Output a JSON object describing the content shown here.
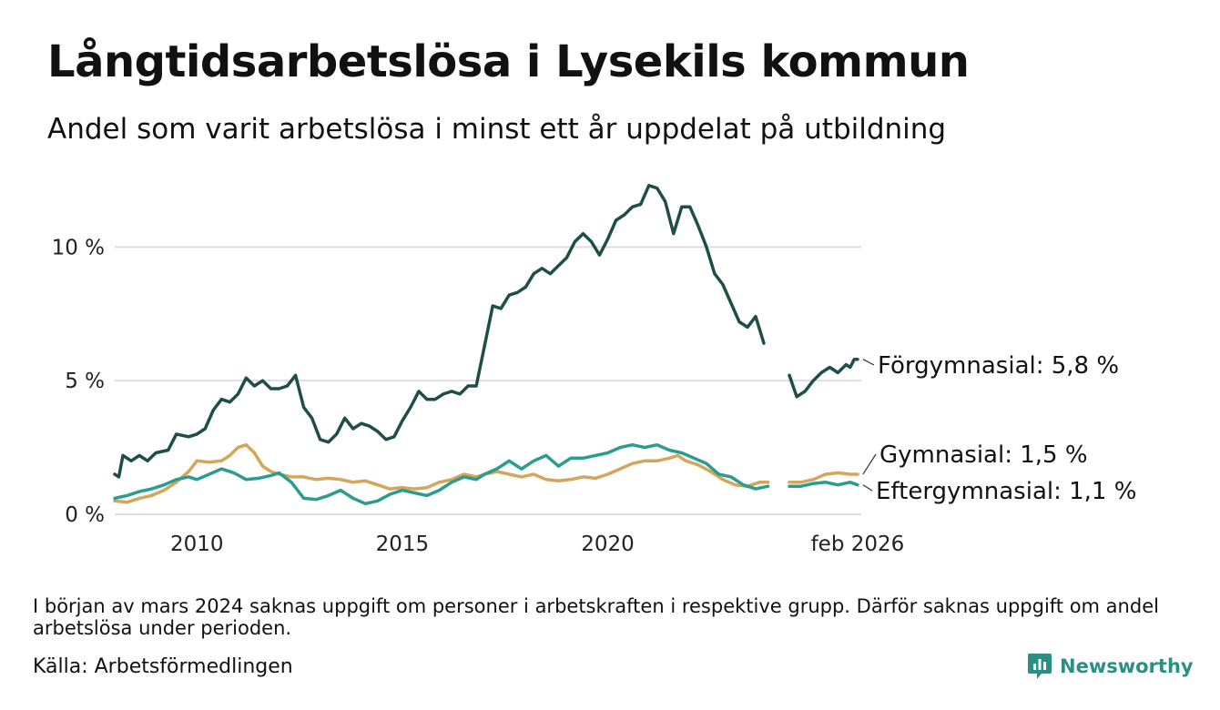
{
  "title": "Långtidsarbetslösa i Lysekils kommun",
  "subtitle": "Andel som varit arbetslösa i minst ett år uppdelat på utbildning",
  "note": "I början av mars 2024 saknas uppgift om personer i arbetskraften i respektive grupp. Därför saknas uppgift om andel arbetslösa under perioden.",
  "source": "Källa: Arbetsförmedlingen",
  "brand": {
    "name": "Newsworthy",
    "icon": "newsworthy-logo-icon",
    "color": "#2a8f85"
  },
  "chart_data": {
    "type": "line",
    "title": "Långtidsarbetslösa i Lysekils kommun",
    "xlabel": "",
    "ylabel": "",
    "xlim": [
      2008.0,
      2026.17
    ],
    "ylim": [
      0,
      12.6
    ],
    "yticks": [
      0,
      5,
      10
    ],
    "ytick_labels": [
      "0 %",
      "5 %",
      "10 %"
    ],
    "xticks": [
      2010,
      2015,
      2020,
      2026.08
    ],
    "xtick_labels": [
      "2010",
      "2015",
      "2020",
      "feb 2026"
    ],
    "grid": "horizontal",
    "gap": [
      2024.08,
      2024.42
    ],
    "series": [
      {
        "name": "Förgymnasial",
        "label": "Förgymnasial: 5,8 %",
        "color": "#1f4e48",
        "points": [
          [
            2008.0,
            1.5
          ],
          [
            2008.1,
            1.4
          ],
          [
            2008.2,
            2.2
          ],
          [
            2008.4,
            2.0
          ],
          [
            2008.6,
            2.2
          ],
          [
            2008.8,
            2.0
          ],
          [
            2009.0,
            2.3
          ],
          [
            2009.3,
            2.4
          ],
          [
            2009.5,
            3.0
          ],
          [
            2009.8,
            2.9
          ],
          [
            2010.0,
            3.0
          ],
          [
            2010.2,
            3.2
          ],
          [
            2010.4,
            3.9
          ],
          [
            2010.6,
            4.3
          ],
          [
            2010.8,
            4.2
          ],
          [
            2011.0,
            4.5
          ],
          [
            2011.2,
            5.1
          ],
          [
            2011.4,
            4.8
          ],
          [
            2011.6,
            5.0
          ],
          [
            2011.8,
            4.7
          ],
          [
            2012.0,
            4.7
          ],
          [
            2012.2,
            4.8
          ],
          [
            2012.4,
            5.2
          ],
          [
            2012.6,
            4.0
          ],
          [
            2012.8,
            3.6
          ],
          [
            2013.0,
            2.8
          ],
          [
            2013.2,
            2.7
          ],
          [
            2013.4,
            3.0
          ],
          [
            2013.6,
            3.6
          ],
          [
            2013.8,
            3.2
          ],
          [
            2014.0,
            3.4
          ],
          [
            2014.2,
            3.3
          ],
          [
            2014.4,
            3.1
          ],
          [
            2014.6,
            2.8
          ],
          [
            2014.8,
            2.9
          ],
          [
            2015.0,
            3.5
          ],
          [
            2015.2,
            4.0
          ],
          [
            2015.4,
            4.6
          ],
          [
            2015.6,
            4.3
          ],
          [
            2015.8,
            4.3
          ],
          [
            2016.0,
            4.5
          ],
          [
            2016.2,
            4.6
          ],
          [
            2016.4,
            4.5
          ],
          [
            2016.6,
            4.8
          ],
          [
            2016.8,
            4.8
          ],
          [
            2017.0,
            6.3
          ],
          [
            2017.2,
            7.8
          ],
          [
            2017.4,
            7.7
          ],
          [
            2017.6,
            8.2
          ],
          [
            2017.8,
            8.3
          ],
          [
            2018.0,
            8.5
          ],
          [
            2018.2,
            9.0
          ],
          [
            2018.4,
            9.2
          ],
          [
            2018.6,
            9.0
          ],
          [
            2018.8,
            9.3
          ],
          [
            2019.0,
            9.6
          ],
          [
            2019.2,
            10.2
          ],
          [
            2019.4,
            10.5
          ],
          [
            2019.6,
            10.2
          ],
          [
            2019.8,
            9.7
          ],
          [
            2020.0,
            10.3
          ],
          [
            2020.2,
            11.0
          ],
          [
            2020.4,
            11.2
          ],
          [
            2020.6,
            11.5
          ],
          [
            2020.8,
            11.6
          ],
          [
            2021.0,
            12.3
          ],
          [
            2021.2,
            12.2
          ],
          [
            2021.4,
            11.7
          ],
          [
            2021.6,
            10.5
          ],
          [
            2021.8,
            11.5
          ],
          [
            2022.0,
            11.5
          ],
          [
            2022.2,
            10.8
          ],
          [
            2022.4,
            10.0
          ],
          [
            2022.6,
            9.0
          ],
          [
            2022.8,
            8.6
          ],
          [
            2023.0,
            7.9
          ],
          [
            2023.2,
            7.2
          ],
          [
            2023.4,
            7.0
          ],
          [
            2023.6,
            7.4
          ],
          [
            2023.8,
            6.4
          ],
          [
            2024.42,
            5.2
          ],
          [
            2024.6,
            4.4
          ],
          [
            2024.8,
            4.6
          ],
          [
            2025.0,
            5.0
          ],
          [
            2025.2,
            5.3
          ],
          [
            2025.4,
            5.5
          ],
          [
            2025.6,
            5.3
          ],
          [
            2025.8,
            5.6
          ],
          [
            2025.9,
            5.5
          ],
          [
            2026.0,
            5.8
          ],
          [
            2026.08,
            5.8
          ]
        ]
      },
      {
        "name": "Gymnasial",
        "label": "Gymnasial: 1,5 %",
        "color": "#d4a55a",
        "points": [
          [
            2008.0,
            0.5
          ],
          [
            2008.3,
            0.45
          ],
          [
            2008.6,
            0.6
          ],
          [
            2008.9,
            0.7
          ],
          [
            2009.2,
            0.9
          ],
          [
            2009.5,
            1.2
          ],
          [
            2009.8,
            1.6
          ],
          [
            2010.0,
            2.0
          ],
          [
            2010.3,
            1.95
          ],
          [
            2010.6,
            2.0
          ],
          [
            2010.8,
            2.2
          ],
          [
            2011.0,
            2.5
          ],
          [
            2011.2,
            2.6
          ],
          [
            2011.4,
            2.3
          ],
          [
            2011.6,
            1.8
          ],
          [
            2011.8,
            1.6
          ],
          [
            2012.0,
            1.5
          ],
          [
            2012.3,
            1.4
          ],
          [
            2012.6,
            1.4
          ],
          [
            2012.9,
            1.3
          ],
          [
            2013.2,
            1.35
          ],
          [
            2013.5,
            1.3
          ],
          [
            2013.8,
            1.2
          ],
          [
            2014.1,
            1.25
          ],
          [
            2014.4,
            1.1
          ],
          [
            2014.7,
            0.95
          ],
          [
            2015.0,
            1.0
          ],
          [
            2015.3,
            0.95
          ],
          [
            2015.6,
            1.0
          ],
          [
            2015.9,
            1.2
          ],
          [
            2016.2,
            1.3
          ],
          [
            2016.5,
            1.5
          ],
          [
            2016.8,
            1.4
          ],
          [
            2017.0,
            1.5
          ],
          [
            2017.3,
            1.6
          ],
          [
            2017.6,
            1.5
          ],
          [
            2017.9,
            1.4
          ],
          [
            2018.2,
            1.5
          ],
          [
            2018.5,
            1.3
          ],
          [
            2018.8,
            1.25
          ],
          [
            2019.1,
            1.3
          ],
          [
            2019.4,
            1.4
          ],
          [
            2019.7,
            1.35
          ],
          [
            2020.0,
            1.5
          ],
          [
            2020.3,
            1.7
          ],
          [
            2020.6,
            1.9
          ],
          [
            2020.9,
            2.0
          ],
          [
            2021.2,
            2.0
          ],
          [
            2021.5,
            2.1
          ],
          [
            2021.7,
            2.2
          ],
          [
            2021.9,
            2.0
          ],
          [
            2022.2,
            1.85
          ],
          [
            2022.5,
            1.6
          ],
          [
            2022.8,
            1.3
          ],
          [
            2023.1,
            1.1
          ],
          [
            2023.4,
            1.05
          ],
          [
            2023.7,
            1.2
          ],
          [
            2023.9,
            1.2
          ],
          [
            2024.42,
            1.2
          ],
          [
            2024.7,
            1.2
          ],
          [
            2025.0,
            1.3
          ],
          [
            2025.3,
            1.5
          ],
          [
            2025.6,
            1.55
          ],
          [
            2025.9,
            1.5
          ],
          [
            2026.08,
            1.5
          ]
        ]
      },
      {
        "name": "Eftergymnasial",
        "label": "Eftergymnasial: 1,1 %",
        "color": "#2a9d8f",
        "points": [
          [
            2008.0,
            0.6
          ],
          [
            2008.3,
            0.7
          ],
          [
            2008.6,
            0.85
          ],
          [
            2008.9,
            0.95
          ],
          [
            2009.2,
            1.1
          ],
          [
            2009.5,
            1.3
          ],
          [
            2009.8,
            1.4
          ],
          [
            2010.0,
            1.3
          ],
          [
            2010.3,
            1.5
          ],
          [
            2010.6,
            1.7
          ],
          [
            2010.9,
            1.55
          ],
          [
            2011.2,
            1.3
          ],
          [
            2011.5,
            1.35
          ],
          [
            2011.8,
            1.45
          ],
          [
            2012.0,
            1.55
          ],
          [
            2012.3,
            1.2
          ],
          [
            2012.6,
            0.6
          ],
          [
            2012.9,
            0.55
          ],
          [
            2013.2,
            0.7
          ],
          [
            2013.5,
            0.9
          ],
          [
            2013.8,
            0.6
          ],
          [
            2014.1,
            0.4
          ],
          [
            2014.4,
            0.5
          ],
          [
            2014.7,
            0.75
          ],
          [
            2015.0,
            0.9
          ],
          [
            2015.3,
            0.8
          ],
          [
            2015.6,
            0.7
          ],
          [
            2015.9,
            0.9
          ],
          [
            2016.2,
            1.2
          ],
          [
            2016.5,
            1.4
          ],
          [
            2016.8,
            1.3
          ],
          [
            2017.0,
            1.5
          ],
          [
            2017.3,
            1.7
          ],
          [
            2017.6,
            2.0
          ],
          [
            2017.9,
            1.7
          ],
          [
            2018.2,
            2.0
          ],
          [
            2018.5,
            2.2
          ],
          [
            2018.8,
            1.8
          ],
          [
            2019.1,
            2.1
          ],
          [
            2019.4,
            2.1
          ],
          [
            2019.7,
            2.2
          ],
          [
            2020.0,
            2.3
          ],
          [
            2020.3,
            2.5
          ],
          [
            2020.6,
            2.6
          ],
          [
            2020.9,
            2.5
          ],
          [
            2021.2,
            2.6
          ],
          [
            2021.5,
            2.4
          ],
          [
            2021.8,
            2.3
          ],
          [
            2022.1,
            2.1
          ],
          [
            2022.4,
            1.9
          ],
          [
            2022.7,
            1.5
          ],
          [
            2023.0,
            1.4
          ],
          [
            2023.3,
            1.1
          ],
          [
            2023.6,
            0.95
          ],
          [
            2023.9,
            1.05
          ],
          [
            2024.42,
            1.05
          ],
          [
            2024.7,
            1.05
          ],
          [
            2025.0,
            1.15
          ],
          [
            2025.3,
            1.2
          ],
          [
            2025.6,
            1.1
          ],
          [
            2025.9,
            1.2
          ],
          [
            2026.08,
            1.1
          ]
        ]
      }
    ]
  }
}
